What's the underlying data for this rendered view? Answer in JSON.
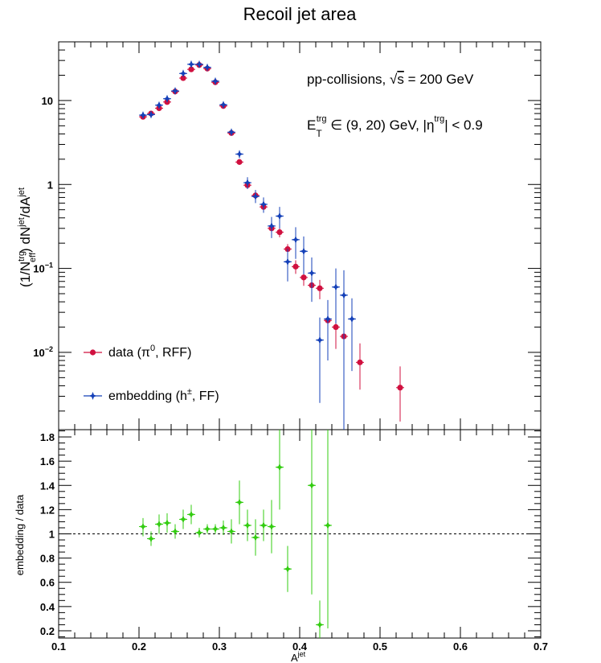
{
  "chart_data": [
    {
      "type": "scatter",
      "title": "Recoil jet area",
      "xlabel": "A^jet",
      "ylabel": "(1/N_eff^trg) dN^jet/dA^jet",
      "xlim": [
        0.1,
        0.7
      ],
      "ylim": [
        0.0012,
        50
      ],
      "yscale": "log",
      "x_ticks": [
        0.1,
        0.2,
        0.3,
        0.4,
        0.5,
        0.6,
        0.7
      ],
      "x_tick_labels": [
        "0.1",
        "0.2",
        "0.3",
        "0.4",
        "0.5",
        "0.6",
        "0.7"
      ],
      "y_tick_labels": [
        "10^-2",
        "10^-1",
        "1",
        "10"
      ],
      "annotations": [
        "pp-collisions, √s = 200 GeV",
        "E_T^trg ∈ (9, 20) GeV, |η^trg| < 0.9"
      ],
      "legend_position": "bottom-left",
      "series": [
        {
          "name": "data (π0, RFF)",
          "color": "#d0103f",
          "marker": "circle",
          "x": [
            0.205,
            0.215,
            0.225,
            0.235,
            0.245,
            0.255,
            0.265,
            0.275,
            0.285,
            0.295,
            0.305,
            0.315,
            0.325,
            0.335,
            0.345,
            0.355,
            0.365,
            0.375,
            0.385,
            0.395,
            0.405,
            0.415,
            0.425,
            0.435,
            0.445,
            0.455,
            0.475,
            0.525
          ],
          "y": [
            6.4,
            7.0,
            8.1,
            9.6,
            12.8,
            18.5,
            23.5,
            26.5,
            24.0,
            16.5,
            8.6,
            4.1,
            1.85,
            0.98,
            0.74,
            0.54,
            0.3,
            0.27,
            0.17,
            0.105,
            0.078,
            0.063,
            0.058,
            0.024,
            0.02,
            0.0155,
            0.0076,
            0.0038
          ],
          "y_lo": [
            6.1,
            6.7,
            7.8,
            9.3,
            12.4,
            18.0,
            22.9,
            25.9,
            23.4,
            16.1,
            8.3,
            3.95,
            1.76,
            0.92,
            0.69,
            0.49,
            0.27,
            0.235,
            0.145,
            0.086,
            0.062,
            0.048,
            0.043,
            0.012,
            0.011,
            0.0072,
            0.0036,
            0.0015
          ],
          "y_hi": [
            6.7,
            7.3,
            8.4,
            9.9,
            13.2,
            19.0,
            24.1,
            27.1,
            24.6,
            16.9,
            8.9,
            4.25,
            1.95,
            1.04,
            0.79,
            0.59,
            0.33,
            0.305,
            0.195,
            0.125,
            0.094,
            0.078,
            0.073,
            0.036,
            0.029,
            0.024,
            0.0128,
            0.0068
          ]
        },
        {
          "name": "embedding (h±, FF)",
          "color": "#1440b8",
          "marker": "star",
          "x": [
            0.205,
            0.215,
            0.225,
            0.235,
            0.245,
            0.255,
            0.265,
            0.275,
            0.285,
            0.295,
            0.305,
            0.315,
            0.325,
            0.335,
            0.345,
            0.355,
            0.365,
            0.375,
            0.385,
            0.395,
            0.405,
            0.415,
            0.425,
            0.435,
            0.445,
            0.455,
            0.465
          ],
          "y": [
            6.7,
            6.8,
            8.8,
            10.5,
            13.0,
            21.0,
            27.0,
            27.0,
            24.8,
            17.0,
            8.9,
            4.2,
            2.3,
            1.05,
            0.72,
            0.58,
            0.32,
            0.42,
            0.12,
            0.22,
            0.16,
            0.088,
            0.014,
            0.025,
            0.06,
            0.048,
            0.025
          ],
          "y_lo": [
            6.4,
            6.5,
            8.4,
            10.1,
            12.6,
            20.3,
            26.2,
            26.3,
            24.0,
            16.4,
            8.5,
            3.95,
            2.05,
            0.88,
            0.6,
            0.46,
            0.23,
            0.3,
            0.07,
            0.13,
            0.085,
            0.04,
            0.0025,
            0.008,
            0.022,
            0.0012,
            0.006
          ],
          "y_hi": [
            7.0,
            7.1,
            9.2,
            10.9,
            13.4,
            21.7,
            27.8,
            27.7,
            25.6,
            17.6,
            9.3,
            4.45,
            2.55,
            1.22,
            0.86,
            0.7,
            0.41,
            0.54,
            0.17,
            0.31,
            0.24,
            0.135,
            0.026,
            0.042,
            0.1,
            0.095,
            0.044
          ]
        }
      ]
    },
    {
      "type": "scatter",
      "xlabel": "A^jet",
      "ylabel": "embedding / data",
      "xlim": [
        0.1,
        0.7
      ],
      "ylim": [
        0.14,
        1.86
      ],
      "x_ticks": [
        0.1,
        0.2,
        0.3,
        0.4,
        0.5,
        0.6,
        0.7
      ],
      "x_tick_labels": [
        "0.1",
        "0.2",
        "0.3",
        "0.4",
        "0.5",
        "0.6",
        "0.7"
      ],
      "y_ticks": [
        0.2,
        0.4,
        0.6,
        0.8,
        1.0,
        1.2,
        1.4,
        1.6,
        1.8
      ],
      "y_tick_labels": [
        "0.2",
        "0.4",
        "0.6",
        "0.8",
        "1",
        "1.2",
        "1.4",
        "1.6",
        "1.8"
      ],
      "reference_line": 1.0,
      "series": [
        {
          "color": "#33cc11",
          "marker": "star",
          "x": [
            0.205,
            0.215,
            0.225,
            0.235,
            0.245,
            0.255,
            0.265,
            0.275,
            0.285,
            0.295,
            0.305,
            0.315,
            0.325,
            0.335,
            0.345,
            0.355,
            0.365,
            0.375,
            0.385,
            0.415,
            0.425,
            0.435
          ],
          "y": [
            1.06,
            0.96,
            1.08,
            1.09,
            1.02,
            1.12,
            1.16,
            1.01,
            1.04,
            1.04,
            1.05,
            1.02,
            1.26,
            1.07,
            0.97,
            1.07,
            1.06,
            1.55,
            0.71,
            1.4,
            0.25,
            1.07
          ],
          "y_lo": [
            0.98,
            0.9,
            1.0,
            1.01,
            0.96,
            1.04,
            1.08,
            0.97,
            1.0,
            1.0,
            0.99,
            0.92,
            1.08,
            0.94,
            0.82,
            0.94,
            0.84,
            1.2,
            0.52,
            0.5,
            0.05,
            0.22
          ],
          "y_hi": [
            1.13,
            1.02,
            1.16,
            1.17,
            1.08,
            1.2,
            1.24,
            1.05,
            1.08,
            1.08,
            1.11,
            1.12,
            1.44,
            1.2,
            1.12,
            1.2,
            1.28,
            1.9,
            0.9,
            1.9,
            0.45,
            1.9
          ]
        }
      ]
    }
  ],
  "legend_marker_shapes": [
    "circle-marker",
    "star-marker"
  ]
}
